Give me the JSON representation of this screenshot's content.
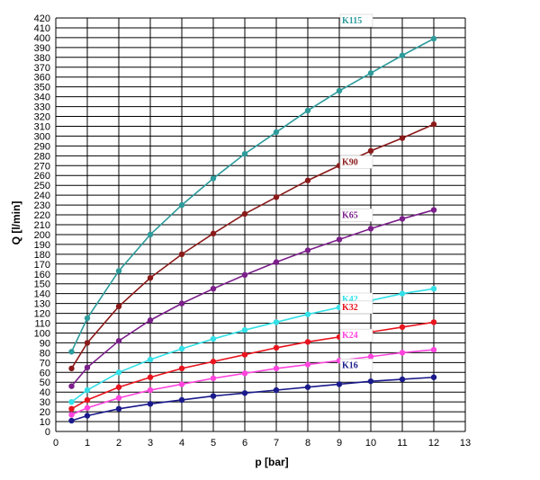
{
  "chart_data": {
    "type": "line",
    "xlabel": "p [bar]",
    "ylabel": "Q [l/min]",
    "xlim": [
      0,
      13
    ],
    "ylim": [
      0,
      420
    ],
    "xticks": [
      0,
      1,
      2,
      3,
      4,
      5,
      6,
      7,
      8,
      9,
      10,
      11,
      12,
      13
    ],
    "yticks": [
      0,
      10,
      20,
      30,
      40,
      50,
      60,
      70,
      80,
      90,
      100,
      110,
      120,
      130,
      140,
      150,
      160,
      170,
      180,
      190,
      200,
      210,
      220,
      230,
      240,
      250,
      260,
      270,
      280,
      290,
      300,
      310,
      320,
      330,
      340,
      350,
      360,
      370,
      380,
      390,
      400,
      410,
      420
    ],
    "grid": true,
    "x": [
      0.5,
      1,
      2,
      3,
      4,
      5,
      6,
      7,
      8,
      9,
      10,
      11,
      12
    ],
    "series": [
      {
        "name": "K115",
        "color": "#2e9b9b",
        "values": [
          81,
          115,
          163,
          200,
          230,
          257,
          282,
          304,
          326,
          346,
          364,
          382,
          399
        ]
      },
      {
        "name": "K90",
        "color": "#8b1a1a",
        "values": [
          64,
          90,
          127,
          156,
          180,
          201,
          221,
          238,
          255,
          270,
          285,
          298,
          312
        ]
      },
      {
        "name": "K65",
        "color": "#7b1f8a",
        "values": [
          46,
          65,
          92,
          113,
          130,
          145,
          159,
          172,
          184,
          195,
          206,
          216,
          225
        ]
      },
      {
        "name": "K42",
        "color": "#33e0e8",
        "values": [
          30,
          42,
          60,
          73,
          84,
          94,
          103,
          111,
          119,
          126,
          133,
          140,
          145
        ]
      },
      {
        "name": "K32",
        "color": "#e8141e",
        "values": [
          23,
          32,
          45,
          55,
          64,
          71,
          78,
          85,
          91,
          96,
          101,
          106,
          111
        ]
      },
      {
        "name": "K24",
        "color": "#ff44dd",
        "values": [
          17,
          24,
          34,
          42,
          48,
          54,
          59,
          64,
          68,
          72,
          76,
          80,
          83
        ]
      },
      {
        "name": "K16",
        "color": "#1a1a8c",
        "values": [
          11,
          16,
          23,
          28,
          32,
          36,
          39,
          42,
          45,
          48,
          51,
          53,
          55
        ]
      }
    ]
  }
}
